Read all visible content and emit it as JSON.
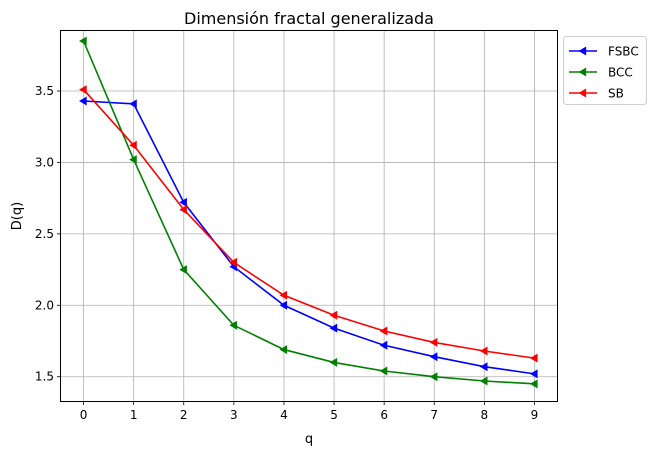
{
  "chart_data": {
    "type": "line",
    "title": "Dimensión fractal generalizada",
    "xlabel": "q",
    "ylabel": "D(q)",
    "x": [
      0,
      1,
      2,
      3,
      4,
      5,
      6,
      7,
      8,
      9
    ],
    "xlim": [
      -0.45,
      9.45
    ],
    "ylim": [
      1.33,
      3.92
    ],
    "xticks": [
      "0",
      "1",
      "2",
      "3",
      "4",
      "5",
      "6",
      "7",
      "8",
      "9"
    ],
    "yticks": [
      "1.5",
      "2.0",
      "2.5",
      "3.0",
      "3.5"
    ],
    "grid": true,
    "legend_position": "outside-top-right",
    "marker": "left-triangle",
    "series": [
      {
        "name": "FSBC",
        "color": "#0000ff",
        "values": [
          3.43,
          3.41,
          2.72,
          2.27,
          2.0,
          1.84,
          1.72,
          1.64,
          1.57,
          1.52
        ]
      },
      {
        "name": "BCC",
        "color": "#008000",
        "values": [
          3.85,
          3.02,
          2.25,
          1.86,
          1.69,
          1.6,
          1.54,
          1.5,
          1.47,
          1.45
        ]
      },
      {
        "name": "SB",
        "color": "#ff0000",
        "values": [
          3.51,
          3.12,
          2.67,
          2.3,
          2.07,
          1.93,
          1.82,
          1.74,
          1.68,
          1.63
        ]
      }
    ]
  }
}
